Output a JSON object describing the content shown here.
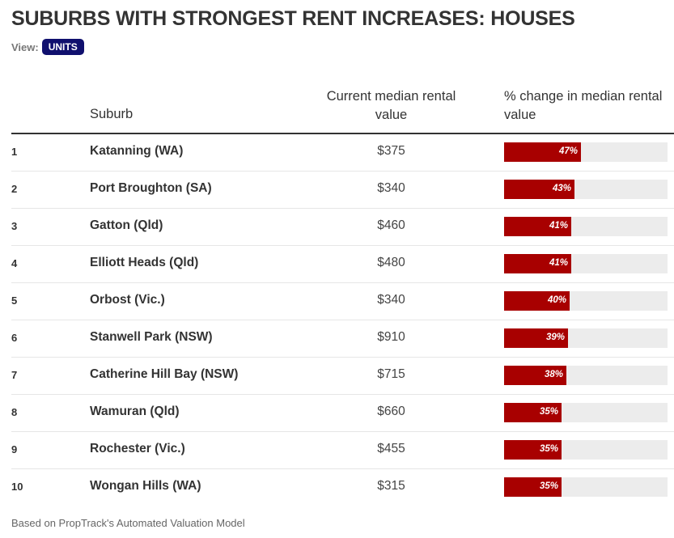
{
  "title": "SUBURBS WITH STRONGEST RENT INCREASES: HOUSES",
  "view": {
    "label": "View:",
    "toggle": "UNITS"
  },
  "columns": {
    "suburb": "Suburb",
    "value": "Current median rental value",
    "change": "% change in median rental value"
  },
  "colors": {
    "bar": "#a80000",
    "track": "#ececec",
    "toggle": "#10106e"
  },
  "chart_data": {
    "type": "table",
    "title": "SUBURBS WITH STRONGEST RENT INCREASES: HOUSES",
    "columns": [
      "",
      "Suburb",
      "Current median rental value",
      "% change in median rental value"
    ],
    "bar_scale_max": 100,
    "rows": [
      {
        "rank": "1",
        "suburb": "Katanning (WA)",
        "value": "$375",
        "change": 47,
        "change_label": "47%"
      },
      {
        "rank": "2",
        "suburb": "Port Broughton (SA)",
        "value": "$340",
        "change": 43,
        "change_label": "43%"
      },
      {
        "rank": "3",
        "suburb": "Gatton (Qld)",
        "value": "$460",
        "change": 41,
        "change_label": "41%"
      },
      {
        "rank": "4",
        "suburb": "Elliott Heads (Qld)",
        "value": "$480",
        "change": 41,
        "change_label": "41%"
      },
      {
        "rank": "5",
        "suburb": "Orbost (Vic.)",
        "value": "$340",
        "change": 40,
        "change_label": "40%"
      },
      {
        "rank": "6",
        "suburb": "Stanwell Park (NSW)",
        "value": "$910",
        "change": 39,
        "change_label": "39%"
      },
      {
        "rank": "7",
        "suburb": "Catherine Hill Bay (NSW)",
        "value": "$715",
        "change": 38,
        "change_label": "38%"
      },
      {
        "rank": "8",
        "suburb": "Wamuran (Qld)",
        "value": "$660",
        "change": 35,
        "change_label": "35%"
      },
      {
        "rank": "9",
        "suburb": "Rochester (Vic.)",
        "value": "$455",
        "change": 35,
        "change_label": "35%"
      },
      {
        "rank": "10",
        "suburb": "Wongan Hills (WA)",
        "value": "$315",
        "change": 35,
        "change_label": "35%"
      }
    ]
  },
  "footnote": "Based on PropTrack's Automated Valuation Model"
}
